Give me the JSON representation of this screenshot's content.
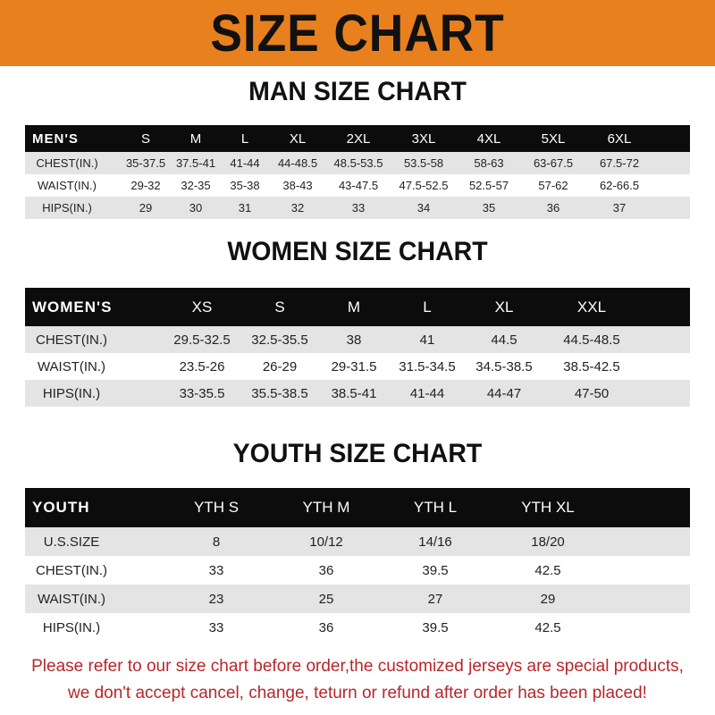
{
  "banner": {
    "title": "SIZE CHART",
    "color": "#e8801e"
  },
  "men": {
    "title": "MAN SIZE CHART",
    "header": [
      "MEN'S",
      "S",
      "M",
      "L",
      "XL",
      "2XL",
      "3XL",
      "4XL",
      "5XL",
      "6XL"
    ],
    "rows": [
      [
        "CHEST(IN.)",
        "35-37.5",
        "37.5-41",
        "41-44",
        "44-48.5",
        "48.5-53.5",
        "53.5-58",
        "58-63",
        "63-67.5",
        "67.5-72"
      ],
      [
        "WAIST(IN.)",
        "29-32",
        "32-35",
        "35-38",
        "38-43",
        "43-47.5",
        "47.5-52.5",
        "52.5-57",
        "57-62",
        "62-66.5"
      ],
      [
        "HIPS(IN.)",
        "29",
        "30",
        "31",
        "32",
        "33",
        "34",
        "35",
        "36",
        "37"
      ]
    ]
  },
  "women": {
    "title": "WOMEN SIZE CHART",
    "header": [
      "WOMEN'S",
      "XS",
      "S",
      "M",
      "L",
      "XL",
      "XXL"
    ],
    "rows": [
      [
        "CHEST(IN.)",
        "29.5-32.5",
        "32.5-35.5",
        "38",
        "41",
        "44.5",
        "44.5-48.5"
      ],
      [
        "WAIST(IN.)",
        "23.5-26",
        "26-29",
        "29-31.5",
        "31.5-34.5",
        "34.5-38.5",
        "38.5-42.5"
      ],
      [
        "HIPS(IN.)",
        "33-35.5",
        "35.5-38.5",
        "38.5-41",
        "41-44",
        "44-47",
        "47-50"
      ]
    ]
  },
  "youth": {
    "title": "YOUTH SIZE CHART",
    "header": [
      "YOUTH",
      "YTH S",
      "YTH M",
      "YTH L",
      "YTH XL"
    ],
    "rows": [
      [
        "U.S.SIZE",
        "8",
        "10/12",
        "14/16",
        "18/20"
      ],
      [
        "CHEST(IN.)",
        "33",
        "36",
        "39.5",
        "42.5"
      ],
      [
        "WAIST(IN.)",
        "23",
        "25",
        "27",
        "29"
      ],
      [
        "HIPS(IN.)",
        "33",
        "36",
        "39.5",
        "42.5"
      ]
    ]
  },
  "footer": {
    "line1": "Please refer to our size chart before order,the customized jerseys are special products,",
    "line2": "we don't accept cancel, change, teturn or refund after order has been placed!",
    "color": "#b8262a"
  }
}
